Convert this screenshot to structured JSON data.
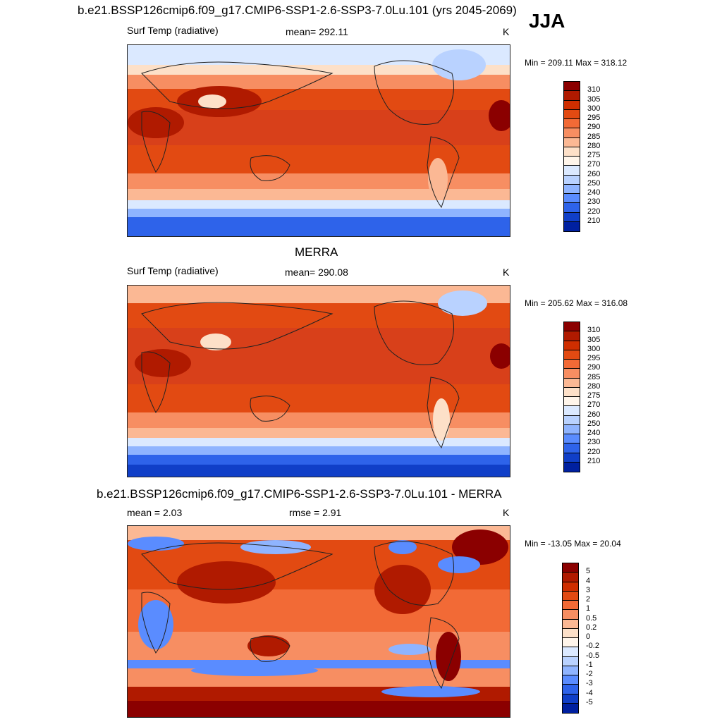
{
  "season": "JJA",
  "panels": [
    {
      "title": "b.e21.BSSP126cmip6.f09_g17.CMIP6-SSP1-2.6-SSP3-7.0Lu.101 (yrs 2045-2069)",
      "left_label": "Surf Temp (radiative)",
      "mid_label": "mean= 292.11",
      "units": "K",
      "minmax": "Min = 209.11 Max = 318.12"
    },
    {
      "title": "MERRA",
      "left_label": "Surf Temp (radiative)",
      "mid_label": "mean= 290.08",
      "units": "K",
      "minmax": "Min = 205.62 Max = 316.08"
    },
    {
      "title": "b.e21.BSSP126cmip6.f09_g17.CMIP6-SSP1-2.6-SSP3-7.0Lu.101 - MERRA",
      "left_label": "mean =   2.03",
      "mid_label": "rmse =   2.91",
      "units": "K",
      "minmax": "Min = -13.05 Max =  20.04"
    }
  ],
  "colorbars": {
    "absolute": {
      "labels": [
        "310",
        "305",
        "300",
        "295",
        "290",
        "285",
        "280",
        "275",
        "270",
        "260",
        "250",
        "240",
        "230",
        "220",
        "210"
      ],
      "colors": [
        "#8b0000",
        "#b01a00",
        "#cf2e00",
        "#e24a12",
        "#f26a36",
        "#f78e62",
        "#fbb894",
        "#fde0c8",
        "#fff5ea",
        "#dbe9ff",
        "#b9d2ff",
        "#8fb4ff",
        "#5a8cff",
        "#2e63ea",
        "#103fc8",
        "#0020a0"
      ]
    },
    "difference": {
      "labels": [
        "5",
        "4",
        "3",
        "2",
        "1",
        "0.5",
        "0.2",
        "0",
        "-0.2",
        "-0.5",
        "-1",
        "-2",
        "-3",
        "-4",
        "-5"
      ],
      "colors": [
        "#8b0000",
        "#b01a00",
        "#cf2e00",
        "#e24a12",
        "#f26a36",
        "#f78e62",
        "#fbb894",
        "#fde0c8",
        "#fff5ea",
        "#dbe9ff",
        "#b9d2ff",
        "#8fb4ff",
        "#5a8cff",
        "#2e63ea",
        "#103fc8",
        "#0020a0"
      ]
    }
  }
}
